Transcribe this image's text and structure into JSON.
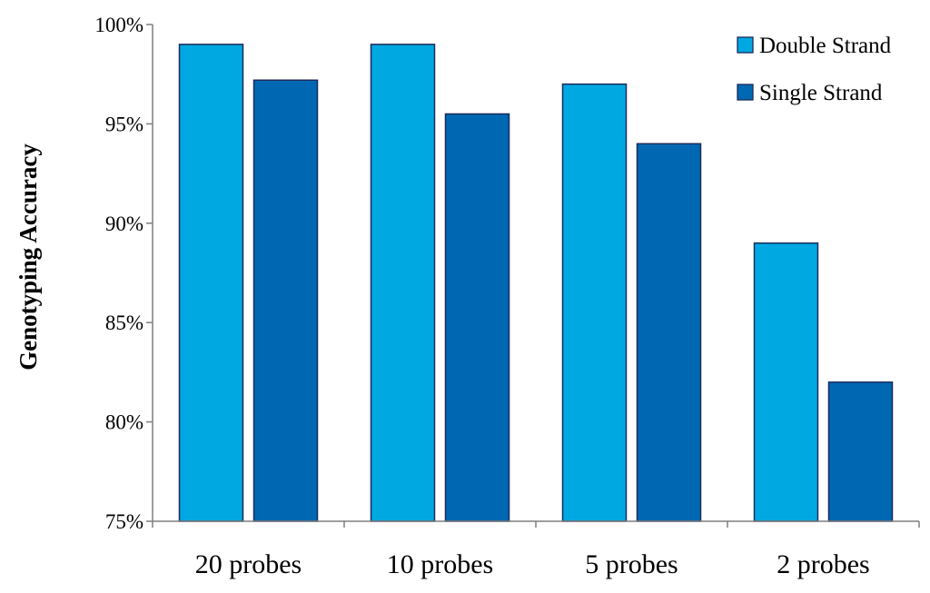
{
  "chart_data": {
    "type": "bar",
    "title": "",
    "xlabel": "",
    "ylabel": "Genotyping Accuracy",
    "categories": [
      "20 probes",
      "10 probes",
      "5 probes",
      "2 probes"
    ],
    "series": [
      {
        "name": "Double Strand",
        "values": [
          99,
          99,
          97,
          89
        ]
      },
      {
        "name": "Single Strand",
        "values": [
          97.2,
          95.5,
          94,
          82
        ]
      }
    ],
    "ylim": [
      75,
      100
    ],
    "yticks": [
      75,
      80,
      85,
      90,
      95,
      100
    ],
    "ytick_labels": [
      "75%",
      "80%",
      "85%",
      "90%",
      "95%",
      "100%"
    ],
    "grid": false,
    "legend_position": "top-right",
    "colors": {
      "Double Strand": "#00a8e1",
      "Single Strand": "#0068b3",
      "bar_outline": "#1c2b5a",
      "axis": "#7f7f7f"
    }
  }
}
